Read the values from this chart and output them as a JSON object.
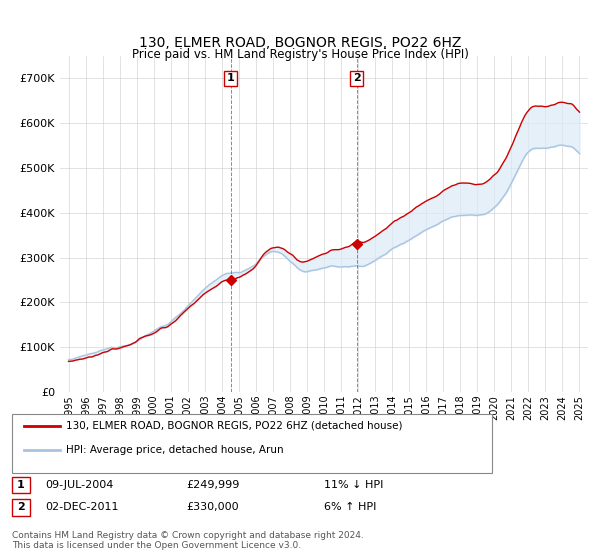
{
  "title": "130, ELMER ROAD, BOGNOR REGIS, PO22 6HZ",
  "subtitle": "Price paid vs. HM Land Registry's House Price Index (HPI)",
  "hpi_label": "HPI: Average price, detached house, Arun",
  "property_label": "130, ELMER ROAD, BOGNOR REGIS, PO22 6HZ (detached house)",
  "transaction1_date": "09-JUL-2004",
  "transaction1_price": "£249,999",
  "transaction1_hpi": "11% ↓ HPI",
  "transaction2_date": "02-DEC-2011",
  "transaction2_price": "£330,000",
  "transaction2_hpi": "6% ↑ HPI",
  "footer": "Contains HM Land Registry data © Crown copyright and database right 2024.\nThis data is licensed under the Open Government Licence v3.0.",
  "hpi_color": "#a8c4e0",
  "property_color": "#cc0000",
  "transaction1_x": 2004.52,
  "transaction2_x": 2011.92,
  "transaction1_y": 249999,
  "transaction2_y": 330000,
  "shade_color": "#daeaf7",
  "ylim": [
    0,
    750000
  ],
  "xlim_start": 1994.5,
  "xlim_end": 2025.5
}
